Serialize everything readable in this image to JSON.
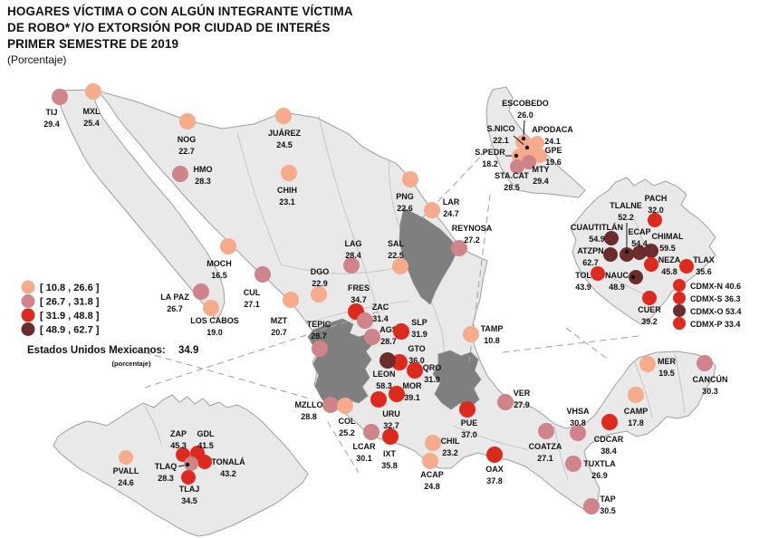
{
  "title": {
    "line1": "HOGARES VÍCTIMA O CON ALGÚN INTEGRANTE VÍCTIMA",
    "line2": "DE ROBO* Y/O EXTORSIÓN POR CIUDAD DE INTERÉS",
    "line3": "PRIMER SEMESTRE DE 2019",
    "subtitle": "(Porcentaje)"
  },
  "legend": {
    "bins": [
      {
        "range": "[ 10.8 , 26.6 ]",
        "color": "#f5ab8c"
      },
      {
        "range": "[ 26.7 , 31.8 ]",
        "color": "#cf8489"
      },
      {
        "range": "[ 31.9 , 48.8 ]",
        "color": "#dd2a1f"
      },
      {
        "range": "[ 48.9 , 62.7 ]",
        "color": "#6b2d2c"
      }
    ]
  },
  "national": {
    "label": "Estados Unidos Mexicanos:",
    "value": "34.9",
    "unit": "(porcentaje)"
  },
  "colors": {
    "land": "#e9e9e9",
    "dark_state": "#7f7f7f",
    "leader": "#111111"
  },
  "cities": [
    {
      "name": "TIJ",
      "value": "29.4",
      "bin": 2,
      "dot": [
        66,
        107
      ],
      "label": [
        57,
        127
      ]
    },
    {
      "name": "MXL",
      "value": "25.4",
      "bin": 1,
      "dot": [
        103,
        101
      ],
      "label": [
        101,
        126
      ]
    },
    {
      "name": "NOG",
      "value": "22.7",
      "bin": 1,
      "dot": [
        207,
        134
      ],
      "label": [
        206,
        157
      ]
    },
    {
      "name": "HMO",
      "value": "28.3",
      "bin": 2,
      "dot": [
        199,
        192
      ],
      "label": [
        224,
        190
      ]
    },
    {
      "name": "JUÁREZ",
      "value": "24.5",
      "bin": 1,
      "dot": [
        313,
        128
      ],
      "label": [
        314,
        150
      ]
    },
    {
      "name": "CHIH",
      "value": "23.1",
      "bin": 1,
      "dot": [
        319,
        191
      ],
      "label": [
        317,
        213
      ]
    },
    {
      "name": "PNG",
      "value": "22.6",
      "bin": 1,
      "dot": [
        453,
        198
      ],
      "label": [
        447,
        220
      ]
    },
    {
      "name": "LAR",
      "value": "24.7",
      "bin": 1,
      "dot": [
        477,
        232
      ],
      "label": [
        498,
        226
      ]
    },
    {
      "name": "REYNOSA",
      "value": "27.2",
      "bin": 2,
      "dot": [
        507,
        274
      ],
      "label": [
        521,
        255
      ]
    },
    {
      "name": "LAG",
      "value": "28.4",
      "bin": 2,
      "dot": [
        388,
        293
      ],
      "label": [
        390,
        272
      ]
    },
    {
      "name": "SAL",
      "value": "22.5",
      "bin": 1,
      "dot": [
        442,
        294
      ],
      "label": [
        437,
        272
      ]
    },
    {
      "name": "MOCH",
      "value": "16.5",
      "bin": 1,
      "dot": [
        252,
        272
      ],
      "label": [
        242,
        294
      ]
    },
    {
      "name": "CUL",
      "value": "27.1",
      "bin": 2,
      "dot": [
        290,
        303
      ],
      "label": [
        278,
        326
      ]
    },
    {
      "name": "LA PAZ",
      "value": "26.7",
      "bin": 2,
      "dot": [
        222,
        322
      ],
      "label": [
        193,
        331
      ]
    },
    {
      "name": "LOS CABOS",
      "value": "19.0",
      "bin": 1,
      "dot": [
        233,
        340
      ],
      "label": [
        237,
        357
      ]
    },
    {
      "name": "MZT",
      "value": "20.7",
      "bin": 1,
      "dot": [
        321,
        331
      ],
      "label": [
        308,
        357
      ]
    },
    {
      "name": "DGO",
      "value": "22.9",
      "bin": 1,
      "dot": [
        352,
        325
      ],
      "label": [
        353,
        303
      ]
    },
    {
      "name": "TEPIC",
      "value": "28.7",
      "bin": 2,
      "dot": [
        353,
        385
      ],
      "label": [
        352,
        361
      ]
    },
    {
      "name": "FRES",
      "value": "34.7",
      "bin": 3,
      "dot": [
        393,
        344
      ],
      "label": [
        396,
        321
      ]
    },
    {
      "name": "ZAC",
      "value": "31.4",
      "bin": 2,
      "dot": [
        403,
        354
      ],
      "label": [
        420,
        342
      ]
    },
    {
      "name": "AGS",
      "value": "28.7",
      "bin": 2,
      "dot": [
        411,
        372
      ],
      "label": [
        429,
        367
      ]
    },
    {
      "name": "SLP",
      "value": "31.9",
      "bin": 3,
      "dot": [
        443,
        366
      ],
      "label": [
        463,
        359
      ]
    },
    {
      "name": "GTO",
      "value": "36.0",
      "bin": 3,
      "dot": [
        441,
        400
      ],
      "label": [
        460,
        388
      ]
    },
    {
      "name": "QRO",
      "value": "31.9",
      "bin": 3,
      "dot": [
        458,
        409
      ],
      "label": [
        477,
        409
      ]
    },
    {
      "name": "LEON",
      "value": "58.3",
      "bin": 4,
      "dot": [
        428,
        398
      ],
      "label": [
        424,
        416
      ]
    },
    {
      "name": "MOR",
      "value": "39.1",
      "bin": 3,
      "dot": [
        438,
        435
      ],
      "label": [
        455,
        429
      ]
    },
    {
      "name": "URU",
      "value": "32.7",
      "bin": 3,
      "dot": [
        418,
        441
      ],
      "label": [
        432,
        460
      ]
    },
    {
      "name": "TAMP",
      "value": "10.8",
      "bin": 1,
      "dot": [
        520,
        369
      ],
      "label": [
        543,
        366
      ]
    },
    {
      "name": "MZLLO",
      "value": "28.8",
      "bin": 2,
      "dot": [
        365,
        447
      ],
      "label": [
        341,
        450
      ]
    },
    {
      "name": "COL",
      "value": "25.2",
      "bin": 1,
      "dot": [
        381,
        448
      ],
      "label": [
        383,
        468
      ]
    },
    {
      "name": "LCAR",
      "value": "30.1",
      "bin": 2,
      "dot": [
        410,
        477
      ],
      "label": [
        402,
        496
      ]
    },
    {
      "name": "IXT",
      "value": "35.8",
      "bin": 3,
      "dot": [
        431,
        482
      ],
      "label": [
        430,
        504
      ]
    },
    {
      "name": "ACAP",
      "value": "24.8",
      "bin": 1,
      "dot": [
        475,
        509
      ],
      "label": [
        477,
        527
      ]
    },
    {
      "name": "CHIL",
      "value": "23.2",
      "bin": 1,
      "dot": [
        478,
        489
      ],
      "label": [
        497,
        490
      ]
    },
    {
      "name": "PUE",
      "value": "37.0",
      "bin": 3,
      "dot": [
        516,
        452
      ],
      "label": [
        518,
        470
      ]
    },
    {
      "name": "OAX",
      "value": "37.8",
      "bin": 3,
      "dot": [
        546,
        502
      ],
      "label": [
        546,
        521
      ]
    },
    {
      "name": "VER",
      "value": "27.9",
      "bin": 2,
      "dot": [
        558,
        444
      ],
      "label": [
        576,
        437
      ]
    },
    {
      "name": "COATZA",
      "value": "27.1",
      "bin": 2,
      "dot": [
        603,
        476
      ],
      "label": [
        602,
        496
      ]
    },
    {
      "name": "VHSA",
      "value": "30.8",
      "bin": 2,
      "dot": [
        638,
        478
      ],
      "label": [
        638,
        457
      ]
    },
    {
      "name": "CDCAR",
      "value": "38.4",
      "bin": 3,
      "dot": [
        673,
        466
      ],
      "label": [
        672,
        488
      ]
    },
    {
      "name": "TUXTLA",
      "value": "26.9",
      "bin": 2,
      "dot": [
        633,
        512
      ],
      "label": [
        662,
        515
      ]
    },
    {
      "name": "TAP",
      "value": "30.5",
      "bin": 2,
      "dot": [
        653,
        559
      ],
      "label": [
        671,
        554
      ]
    },
    {
      "name": "CAMP",
      "value": "17.8",
      "bin": 1,
      "dot": [
        702,
        436
      ],
      "label": [
        702,
        457
      ]
    },
    {
      "name": "MER",
      "value": "19.5",
      "bin": 1,
      "dot": [
        715,
        402
      ],
      "label": [
        736,
        402
      ]
    },
    {
      "name": "CANCÚN",
      "value": "30.3",
      "bin": 2,
      "dot": [
        778,
        401
      ],
      "label": [
        784,
        422
      ]
    },
    {
      "name": "ESCOBEDO",
      "value": "26.0",
      "bin": 1,
      "r": 8,
      "dot": [
        577,
        157
      ],
      "label": [
        580,
        117
      ],
      "leader": [
        579,
        133,
        578,
        153
      ]
    },
    {
      "name": "S.NICO",
      "value": "22.1",
      "bin": 1,
      "r": 8,
      "dot": [
        584,
        165
      ],
      "label": [
        553,
        145
      ],
      "leader": [
        567,
        150,
        582,
        163
      ]
    },
    {
      "name": "APODACA",
      "value": "24.1",
      "bin": 1,
      "r": 8,
      "dot": [
        593,
        158
      ],
      "label": [
        610,
        146
      ]
    },
    {
      "name": "GPE",
      "value": "19.6",
      "bin": 1,
      "r": 8,
      "dot": [
        596,
        172
      ],
      "label": [
        611,
        169
      ]
    },
    {
      "name": "S.PEDR",
      "value": "18.2",
      "bin": 1,
      "r": 8,
      "dot": [
        573,
        172
      ],
      "label": [
        541,
        171
      ],
      "leader": [
        558,
        172,
        570,
        172
      ]
    },
    {
      "name": "MTY",
      "value": "29.4",
      "bin": 2,
      "r": 8,
      "dot": [
        584,
        179
      ],
      "label": [
        597,
        190
      ]
    },
    {
      "name": "STA.CAT",
      "value": "28.5",
      "bin": 2,
      "r": 8,
      "dot": [
        571,
        184
      ],
      "label": [
        565,
        197
      ]
    },
    {
      "name": "TLALNE",
      "value": "52.2",
      "bin": 4,
      "r": 8,
      "dot": [
        692,
        281
      ],
      "label": [
        691,
        230
      ],
      "leader": [
        692,
        246,
        692,
        278
      ]
    },
    {
      "name": "PACH",
      "value": "32.0",
      "bin": 3,
      "r": 8,
      "dot": [
        723,
        243
      ],
      "label": [
        724,
        222
      ]
    },
    {
      "name": "CUAUTITLÁN",
      "value": "54.9",
      "bin": 4,
      "r": 8,
      "dot": [
        675,
        263
      ],
      "label": [
        659,
        254
      ]
    },
    {
      "name": "ECAP",
      "value": "54.4",
      "bin": 4,
      "r": 8,
      "dot": [
        706,
        279
      ],
      "label": [
        706,
        259
      ]
    },
    {
      "name": "CHIMAL",
      "value": "59.5",
      "bin": 4,
      "r": 8,
      "dot": [
        719,
        277
      ],
      "label": [
        737,
        264
      ]
    },
    {
      "name": "ATZPN",
      "value": "62.7",
      "bin": 4,
      "r": 8,
      "dot": [
        674,
        281
      ],
      "label": [
        652,
        280
      ]
    },
    {
      "name": "NEZA",
      "value": "45.8",
      "bin": 3,
      "r": 8,
      "dot": [
        719,
        292
      ],
      "label": [
        739,
        290
      ]
    },
    {
      "name": "TLAX",
      "value": "35.6",
      "bin": 3,
      "r": 8,
      "dot": [
        758,
        294
      ],
      "label": [
        777,
        290
      ]
    },
    {
      "name": "TOL",
      "value": "43.9",
      "bin": 3,
      "r": 8,
      "dot": [
        660,
        302
      ],
      "label": [
        644,
        307
      ]
    },
    {
      "name": "NAUC",
      "value": "48.9",
      "bin": 4,
      "r": 8,
      "dot": [
        702,
        306
      ],
      "label": [
        681,
        307
      ],
      "leader": [
        694,
        306,
        699,
        306
      ]
    },
    {
      "name": "CUER",
      "value": "39.2",
      "bin": 3,
      "r": 8,
      "dot": [
        717,
        329
      ],
      "label": [
        717,
        345
      ]
    },
    {
      "name": "CDMX-N",
      "value": "40.6",
      "bin": 3,
      "r": 7,
      "inline": true,
      "dot": [
        750,
        315
      ],
      "label": [
        762,
        319
      ]
    },
    {
      "name": "CDMX-S",
      "value": "36.3",
      "bin": 3,
      "r": 7,
      "inline": true,
      "dot": [
        750,
        329
      ],
      "label": [
        762,
        333
      ]
    },
    {
      "name": "CDMX-O",
      "value": "53.4",
      "bin": 4,
      "r": 7,
      "inline": true,
      "dot": [
        750,
        343
      ],
      "label": [
        762,
        347
      ]
    },
    {
      "name": "CDMX-P",
      "value": "33.4",
      "bin": 3,
      "r": 7,
      "inline": true,
      "dot": [
        750,
        357
      ],
      "label": [
        762,
        361
      ]
    },
    {
      "name": "ZAP",
      "value": "45.3",
      "bin": 3,
      "r": 8,
      "dot": [
        202,
        502
      ],
      "label": [
        197,
        482
      ]
    },
    {
      "name": "GDL",
      "value": "41.5",
      "bin": 3,
      "r": 8,
      "dot": [
        218,
        500
      ],
      "label": [
        227,
        482
      ]
    },
    {
      "name": "TONALÁ",
      "value": "43.2",
      "bin": 3,
      "r": 8,
      "dot": [
        226,
        510
      ],
      "label": [
        252,
        513
      ]
    },
    {
      "name": "TLAQ",
      "value": "28.3",
      "bin": 2,
      "r": 8,
      "dot": [
        211,
        512
      ],
      "label": [
        183,
        518
      ],
      "leader": [
        197,
        515,
        207,
        513
      ]
    },
    {
      "name": "TLAJ",
      "value": "34.5",
      "bin": 3,
      "r": 8,
      "dot": [
        208,
        527
      ],
      "label": [
        209,
        543
      ]
    },
    {
      "name": "PVALL",
      "value": "24.6",
      "bin": 1,
      "r": 8,
      "dot": [
        139,
        505
      ],
      "label": [
        139,
        523
      ]
    }
  ]
}
